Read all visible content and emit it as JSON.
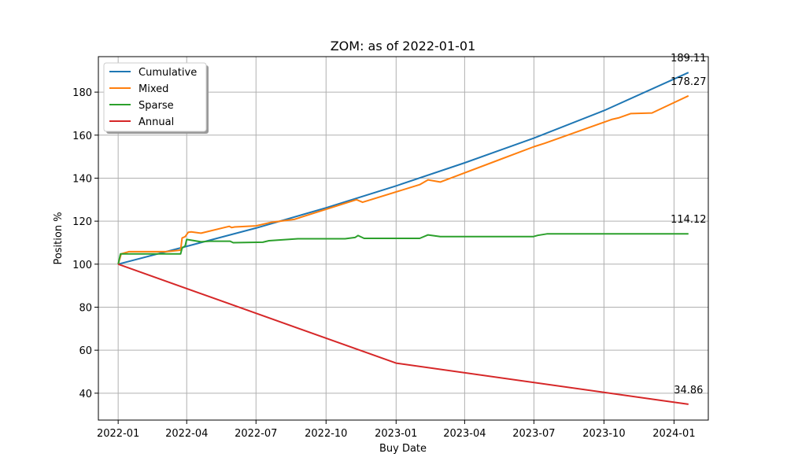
{
  "chart_data": {
    "type": "line",
    "title": "ZOM: as of 2022-01-01",
    "xlabel": "Buy Date",
    "ylabel": "Position %",
    "xlim": [
      "2021-12-06",
      "2024-02-15"
    ],
    "ylim": [
      27.5,
      196.5
    ],
    "x_ticks": [
      "2022-01",
      "2022-04",
      "2022-07",
      "2022-10",
      "2023-01",
      "2023-04",
      "2023-07",
      "2023-10",
      "2024-01"
    ],
    "y_ticks": [
      40,
      60,
      80,
      100,
      120,
      140,
      160,
      180
    ],
    "grid": true,
    "legend": {
      "position": "top-left",
      "entries": [
        "Cumulative",
        "Mixed",
        "Sparse",
        "Annual"
      ]
    },
    "series": [
      {
        "name": "Cumulative",
        "color": "#1f77b4",
        "points": [
          [
            "2022-01-01",
            100
          ],
          [
            "2022-04-01",
            108.3
          ],
          [
            "2022-07-01",
            116.8
          ],
          [
            "2022-10-01",
            126.2
          ],
          [
            "2023-01-01",
            136.4
          ],
          [
            "2023-04-01",
            147.1
          ],
          [
            "2023-07-01",
            158.6
          ],
          [
            "2023-10-01",
            171.4
          ],
          [
            "2024-01-20",
            189.11
          ]
        ]
      },
      {
        "name": "Mixed",
        "color": "#ff7f0e",
        "points": [
          [
            "2022-01-01",
            100
          ],
          [
            "2022-01-05",
            104.8
          ],
          [
            "2022-01-15",
            105.8
          ],
          [
            "2022-03-05",
            105.8
          ],
          [
            "2022-03-24",
            106.5
          ],
          [
            "2022-03-26",
            112.2
          ],
          [
            "2022-03-30",
            112.8
          ],
          [
            "2022-04-03",
            114.8
          ],
          [
            "2022-04-07",
            115.0
          ],
          [
            "2022-04-20",
            114.4
          ],
          [
            "2022-05-27",
            117.6
          ],
          [
            "2022-05-30",
            117.0
          ],
          [
            "2022-06-03",
            117.3
          ],
          [
            "2022-07-01",
            117.8
          ],
          [
            "2022-07-20",
            119.4
          ],
          [
            "2022-08-20",
            120.8
          ],
          [
            "2022-11-10",
            130.0
          ],
          [
            "2022-11-18",
            128.8
          ],
          [
            "2023-02-01",
            137.0
          ],
          [
            "2023-02-12",
            139.2
          ],
          [
            "2023-02-28",
            138.2
          ],
          [
            "2023-07-01",
            154.6
          ],
          [
            "2023-07-15",
            156.2
          ],
          [
            "2023-10-12",
            167.4
          ],
          [
            "2023-10-20",
            168.0
          ],
          [
            "2023-11-05",
            170.0
          ],
          [
            "2023-12-03",
            170.3
          ],
          [
            "2024-01-20",
            178.27
          ]
        ]
      },
      {
        "name": "Sparse",
        "color": "#2ca02c",
        "points": [
          [
            "2022-01-01",
            100
          ],
          [
            "2022-01-04",
            104.8
          ],
          [
            "2022-03-24",
            104.8
          ],
          [
            "2022-03-26",
            107.5
          ],
          [
            "2022-03-30",
            108.5
          ],
          [
            "2022-04-01",
            111.5
          ],
          [
            "2022-04-20",
            110.4
          ],
          [
            "2022-05-01",
            110.7
          ],
          [
            "2022-05-28",
            110.7
          ],
          [
            "2022-06-01",
            110.0
          ],
          [
            "2022-07-10",
            110.2
          ],
          [
            "2022-07-18",
            110.9
          ],
          [
            "2022-08-25",
            111.8
          ],
          [
            "2022-10-26",
            111.8
          ],
          [
            "2022-11-08",
            112.4
          ],
          [
            "2022-11-12",
            113.3
          ],
          [
            "2022-11-20",
            112.0
          ],
          [
            "2023-02-01",
            112.0
          ],
          [
            "2023-02-12",
            113.6
          ],
          [
            "2023-02-28",
            112.8
          ],
          [
            "2023-06-30",
            112.8
          ],
          [
            "2023-07-06",
            113.4
          ],
          [
            "2023-07-18",
            114.1
          ],
          [
            "2023-12-01",
            114.1
          ],
          [
            "2024-01-20",
            114.12
          ]
        ]
      },
      {
        "name": "Annual",
        "color": "#d62728",
        "points": [
          [
            "2022-01-01",
            100
          ],
          [
            "2023-01-01",
            54.0
          ],
          [
            "2024-01-20",
            34.86
          ]
        ]
      }
    ],
    "annotations": [
      {
        "series": "Cumulative",
        "text": "189.11"
      },
      {
        "series": "Mixed",
        "text": "178.27"
      },
      {
        "series": "Sparse",
        "text": "114.12"
      },
      {
        "series": "Annual",
        "text": "34.86"
      }
    ]
  }
}
